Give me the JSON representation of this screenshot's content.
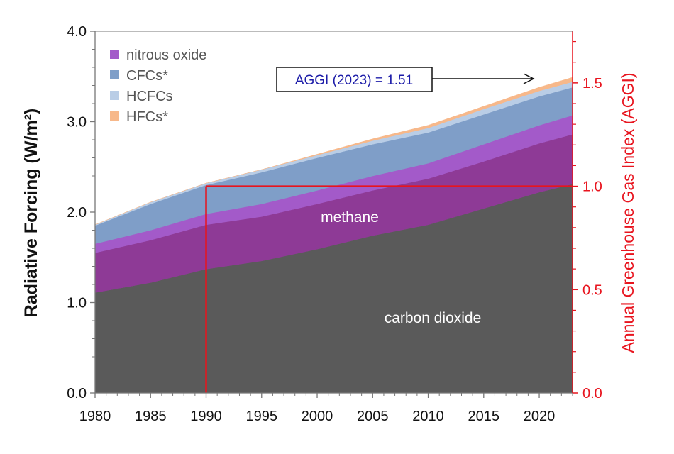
{
  "chart_data": {
    "type": "area",
    "title": "",
    "xlabel": "",
    "ylabel": "Radiative Forcing (W/m²)",
    "ylabel_right": "Annual Greenhouse Gas Index (AGGI)",
    "xlim": [
      1980,
      2023
    ],
    "ylim": [
      0,
      4.0
    ],
    "ylim_right": [
      0,
      1.75
    ],
    "x_ticks": [
      "1980",
      "1985",
      "1990",
      "1995",
      "2000",
      "2005",
      "2010",
      "2015",
      "2020"
    ],
    "y_ticks": [
      "0.0",
      "1.0",
      "2.0",
      "3.0",
      "4.0"
    ],
    "y_ticks_right": [
      "0.0",
      "0.5",
      "1.0",
      "1.5"
    ],
    "stacked": true,
    "x": [
      1980,
      1985,
      1990,
      1995,
      2000,
      2005,
      2010,
      2015,
      2020,
      2023
    ],
    "series": [
      {
        "name": "carbon dioxide",
        "color": "#5a5a5a",
        "values": [
          1.11,
          1.22,
          1.37,
          1.46,
          1.59,
          1.74,
          1.86,
          2.04,
          2.22,
          2.31
        ]
      },
      {
        "name": "methane",
        "color": "#8e3a96",
        "values": [
          0.44,
          0.47,
          0.49,
          0.49,
          0.5,
          0.5,
          0.51,
          0.52,
          0.54,
          0.55
        ]
      },
      {
        "name": "nitrous oxide",
        "color": "#a35ac9",
        "values": [
          0.1,
          0.11,
          0.12,
          0.14,
          0.15,
          0.16,
          0.17,
          0.19,
          0.2,
          0.21
        ]
      },
      {
        "name": "CFCs*",
        "color": "#7f9ec8",
        "values": [
          0.2,
          0.29,
          0.32,
          0.35,
          0.36,
          0.35,
          0.34,
          0.33,
          0.32,
          0.31
        ]
      },
      {
        "name": "HCFCs",
        "color": "#b9cde6",
        "values": [
          0.01,
          0.02,
          0.02,
          0.03,
          0.03,
          0.04,
          0.05,
          0.06,
          0.06,
          0.06
        ]
      },
      {
        "name": "HFCs*",
        "color": "#f7b88a",
        "values": [
          0.0,
          0.0,
          0.0,
          0.0,
          0.01,
          0.02,
          0.03,
          0.03,
          0.04,
          0.05
        ]
      }
    ],
    "area_labels": [
      "methane",
      "carbon dioxide"
    ],
    "legend": {
      "position": "top-left",
      "entries": [
        "nitrous oxide",
        "CFCs*",
        "HCFCs",
        "HFCs*"
      ]
    },
    "reference_line": {
      "year": 1990,
      "aggi": 1.0,
      "color": "#e8141e"
    },
    "annotation": {
      "text": "AGGI (2023) = 1.51",
      "text_color": "#1c1ca8"
    },
    "grid": false
  }
}
